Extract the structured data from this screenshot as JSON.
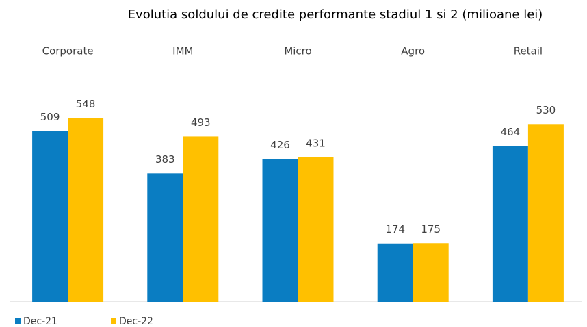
{
  "chart_data": {
    "type": "bar",
    "title": "Evolutia soldului de credite performante stadiul 1 si 2 (milioane lei)",
    "categories": [
      "Corporate",
      "IMM",
      "Micro",
      "Agro",
      "Retail"
    ],
    "series": [
      {
        "name": "Dec-21",
        "color": "#0a7dc2",
        "values": [
          509,
          383,
          426,
          174,
          464
        ]
      },
      {
        "name": "Dec-22",
        "color": "#ffc000",
        "values": [
          548,
          493,
          431,
          175,
          530
        ]
      }
    ],
    "legend": "bottom-left"
  }
}
